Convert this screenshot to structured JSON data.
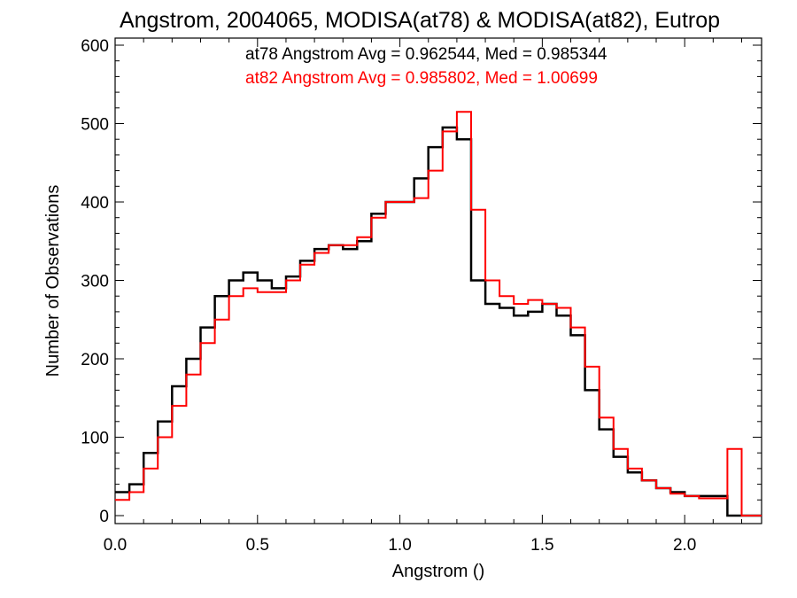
{
  "chart_data": {
    "type": "line",
    "title": "Angstrom, 2004065, MODISA(at78) & MODISA(at82), Eutrop",
    "xlabel": "Angstrom ()",
    "ylabel": "Number of Observations",
    "xlim": [
      0.0,
      2.27
    ],
    "ylim": [
      0,
      600
    ],
    "xticks": [
      "0.0",
      "0.5",
      "1.0",
      "1.5",
      "2.0"
    ],
    "yticks": [
      "0",
      "100",
      "200",
      "300",
      "400",
      "500",
      "600"
    ],
    "annotations": [
      {
        "text": "at78 Angstrom Avg = 0.962544, Med = 0.985344",
        "color": "#000000"
      },
      {
        "text": "at82 Angstrom Avg = 0.985802, Med = 1.00699",
        "color": "#ff0000"
      }
    ],
    "grid": false,
    "series": [
      {
        "name": "at78",
        "color": "#000000",
        "x": [
          0.0,
          0.05,
          0.1,
          0.15,
          0.2,
          0.25,
          0.3,
          0.35,
          0.4,
          0.45,
          0.5,
          0.55,
          0.6,
          0.65,
          0.7,
          0.75,
          0.8,
          0.85,
          0.9,
          0.95,
          1.0,
          1.05,
          1.1,
          1.15,
          1.2,
          1.25,
          1.3,
          1.35,
          1.4,
          1.45,
          1.5,
          1.55,
          1.6,
          1.65,
          1.7,
          1.75,
          1.8,
          1.85,
          1.9,
          1.95,
          2.0,
          2.05,
          2.1,
          2.15,
          2.2,
          2.25
        ],
        "y": [
          30,
          40,
          80,
          120,
          165,
          200,
          240,
          280,
          300,
          310,
          300,
          290,
          305,
          325,
          340,
          345,
          340,
          350,
          385,
          400,
          400,
          430,
          470,
          495,
          480,
          300,
          270,
          265,
          255,
          260,
          270,
          255,
          230,
          160,
          110,
          75,
          55,
          45,
          35,
          30,
          25,
          25,
          25,
          0,
          0,
          0
        ]
      },
      {
        "name": "at82",
        "color": "#ff0000",
        "x": [
          0.0,
          0.05,
          0.1,
          0.15,
          0.2,
          0.25,
          0.3,
          0.35,
          0.4,
          0.45,
          0.5,
          0.55,
          0.6,
          0.65,
          0.7,
          0.75,
          0.8,
          0.85,
          0.9,
          0.95,
          1.0,
          1.05,
          1.1,
          1.15,
          1.2,
          1.25,
          1.3,
          1.35,
          1.4,
          1.45,
          1.5,
          1.55,
          1.6,
          1.65,
          1.7,
          1.75,
          1.8,
          1.85,
          1.9,
          1.95,
          2.0,
          2.05,
          2.1,
          2.15,
          2.2,
          2.25
        ],
        "y": [
          20,
          30,
          60,
          100,
          140,
          180,
          220,
          250,
          280,
          290,
          285,
          285,
          300,
          320,
          335,
          345,
          345,
          355,
          380,
          400,
          400,
          405,
          440,
          490,
          515,
          390,
          300,
          280,
          270,
          275,
          270,
          265,
          240,
          190,
          125,
          85,
          60,
          45,
          35,
          28,
          25,
          22,
          22,
          85,
          0,
          0
        ]
      }
    ]
  }
}
